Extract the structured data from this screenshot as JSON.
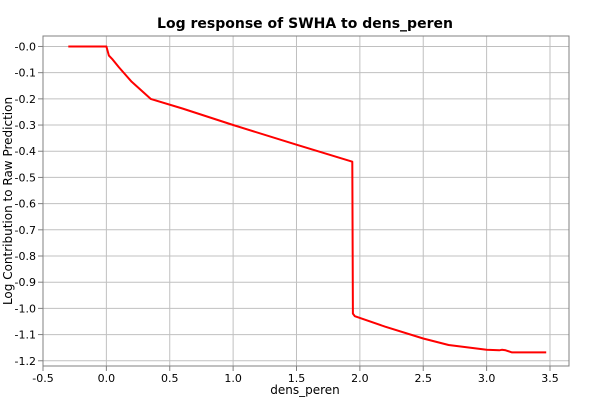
{
  "chart_data": {
    "type": "line",
    "title": "Log response of SWHA to dens_peren",
    "xlabel": "dens_peren",
    "ylabel": "Log Contribution to Raw Prediction",
    "xlim": [
      -0.5,
      3.65
    ],
    "ylim": [
      -1.22,
      0.04
    ],
    "x_ticks": [
      -0.5,
      0.0,
      0.5,
      1.0,
      1.5,
      2.0,
      2.5,
      3.0,
      3.5
    ],
    "x_tick_labels": [
      "-0.5",
      "0.0",
      "0.5",
      "1.0",
      "1.5",
      "2.0",
      "2.5",
      "3.0",
      "3.5"
    ],
    "y_ticks": [
      0.0,
      -0.1,
      -0.2,
      -0.3,
      -0.4,
      -0.5,
      -0.6,
      -0.7,
      -0.8,
      -0.9,
      -1.0,
      -1.1,
      -1.2
    ],
    "y_tick_labels": [
      "-0.0",
      "-0.1",
      "-0.2",
      "-0.3",
      "-0.4",
      "-0.5",
      "-0.6",
      "-0.7",
      "-0.8",
      "-0.9",
      "-1.0",
      "-1.1",
      "-1.2"
    ],
    "grid": true,
    "line_color": "#ff0000",
    "series": [
      {
        "x": [
          -0.3,
          -0.2,
          -0.1,
          0.0,
          0.02,
          0.05,
          0.1,
          0.2,
          0.35,
          0.6,
          1.0,
          1.5,
          1.94,
          1.945,
          1.96,
          2.2,
          2.5,
          2.7,
          3.0,
          3.1,
          3.12,
          3.15,
          3.2,
          3.3,
          3.47
        ],
        "y": [
          0.0,
          0.0,
          0.0,
          0.0,
          -0.035,
          -0.05,
          -0.08,
          -0.135,
          -0.2,
          -0.237,
          -0.3,
          -0.375,
          -0.44,
          -1.02,
          -1.03,
          -1.07,
          -1.115,
          -1.14,
          -1.158,
          -1.16,
          -1.158,
          -1.16,
          -1.168,
          -1.168,
          -1.168
        ]
      }
    ]
  }
}
